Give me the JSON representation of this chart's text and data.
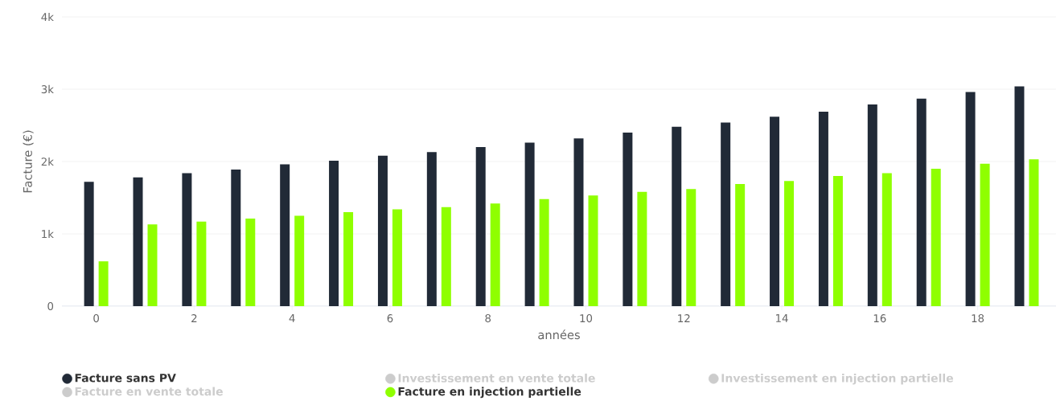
{
  "chart_data": {
    "type": "bar",
    "xlabel": "années",
    "ylabel": "Facture (€)",
    "x": [
      0,
      1,
      2,
      3,
      4,
      5,
      6,
      7,
      8,
      9,
      10,
      11,
      12,
      13,
      14,
      15,
      16,
      17,
      18,
      19
    ],
    "xlim": [
      -0.7,
      19.6
    ],
    "xticks": [
      0,
      2,
      4,
      6,
      8,
      10,
      12,
      14,
      16,
      18
    ],
    "ylim": [
      0,
      4000
    ],
    "yticks": [
      0,
      {
        "value": 1000,
        "label": "1k"
      },
      {
        "value": 2000,
        "label": "2k"
      },
      {
        "value": 3000,
        "label": "3k"
      },
      {
        "value": 4000,
        "label": "4k"
      }
    ],
    "grid": "y",
    "legend": "bottom",
    "series": [
      {
        "name": "Facture sans PV",
        "color": "#212a37",
        "values": [
          1720,
          1780,
          1840,
          1890,
          1960,
          2010,
          2080,
          2130,
          2200,
          2260,
          2320,
          2400,
          2480,
          2540,
          2620,
          2690,
          2790,
          2870,
          2960,
          3040
        ]
      },
      {
        "name": "Investissement en vente totale",
        "color": "#cccccc",
        "values": [
          null,
          null,
          null,
          null,
          null,
          null,
          null,
          null,
          null,
          null,
          null,
          null,
          null,
          null,
          null,
          null,
          null,
          null,
          null,
          null
        ]
      },
      {
        "name": "Investissement en injection partielle",
        "color": "#cccccc",
        "values": [
          null,
          null,
          null,
          null,
          null,
          null,
          null,
          null,
          null,
          null,
          null,
          null,
          null,
          null,
          null,
          null,
          null,
          null,
          null,
          null
        ]
      },
      {
        "name": "Facture en vente totale",
        "color": "#cccccc",
        "values": [
          null,
          null,
          null,
          null,
          null,
          null,
          null,
          null,
          null,
          null,
          null,
          null,
          null,
          null,
          null,
          null,
          null,
          null,
          null,
          null
        ]
      },
      {
        "name": "Facture en injection partielle",
        "color": "#8fff00",
        "values": [
          620,
          1130,
          1170,
          1210,
          1250,
          1300,
          1340,
          1370,
          1420,
          1480,
          1530,
          1580,
          1620,
          1690,
          1730,
          1800,
          1840,
          1900,
          1970,
          2030
        ]
      }
    ]
  }
}
